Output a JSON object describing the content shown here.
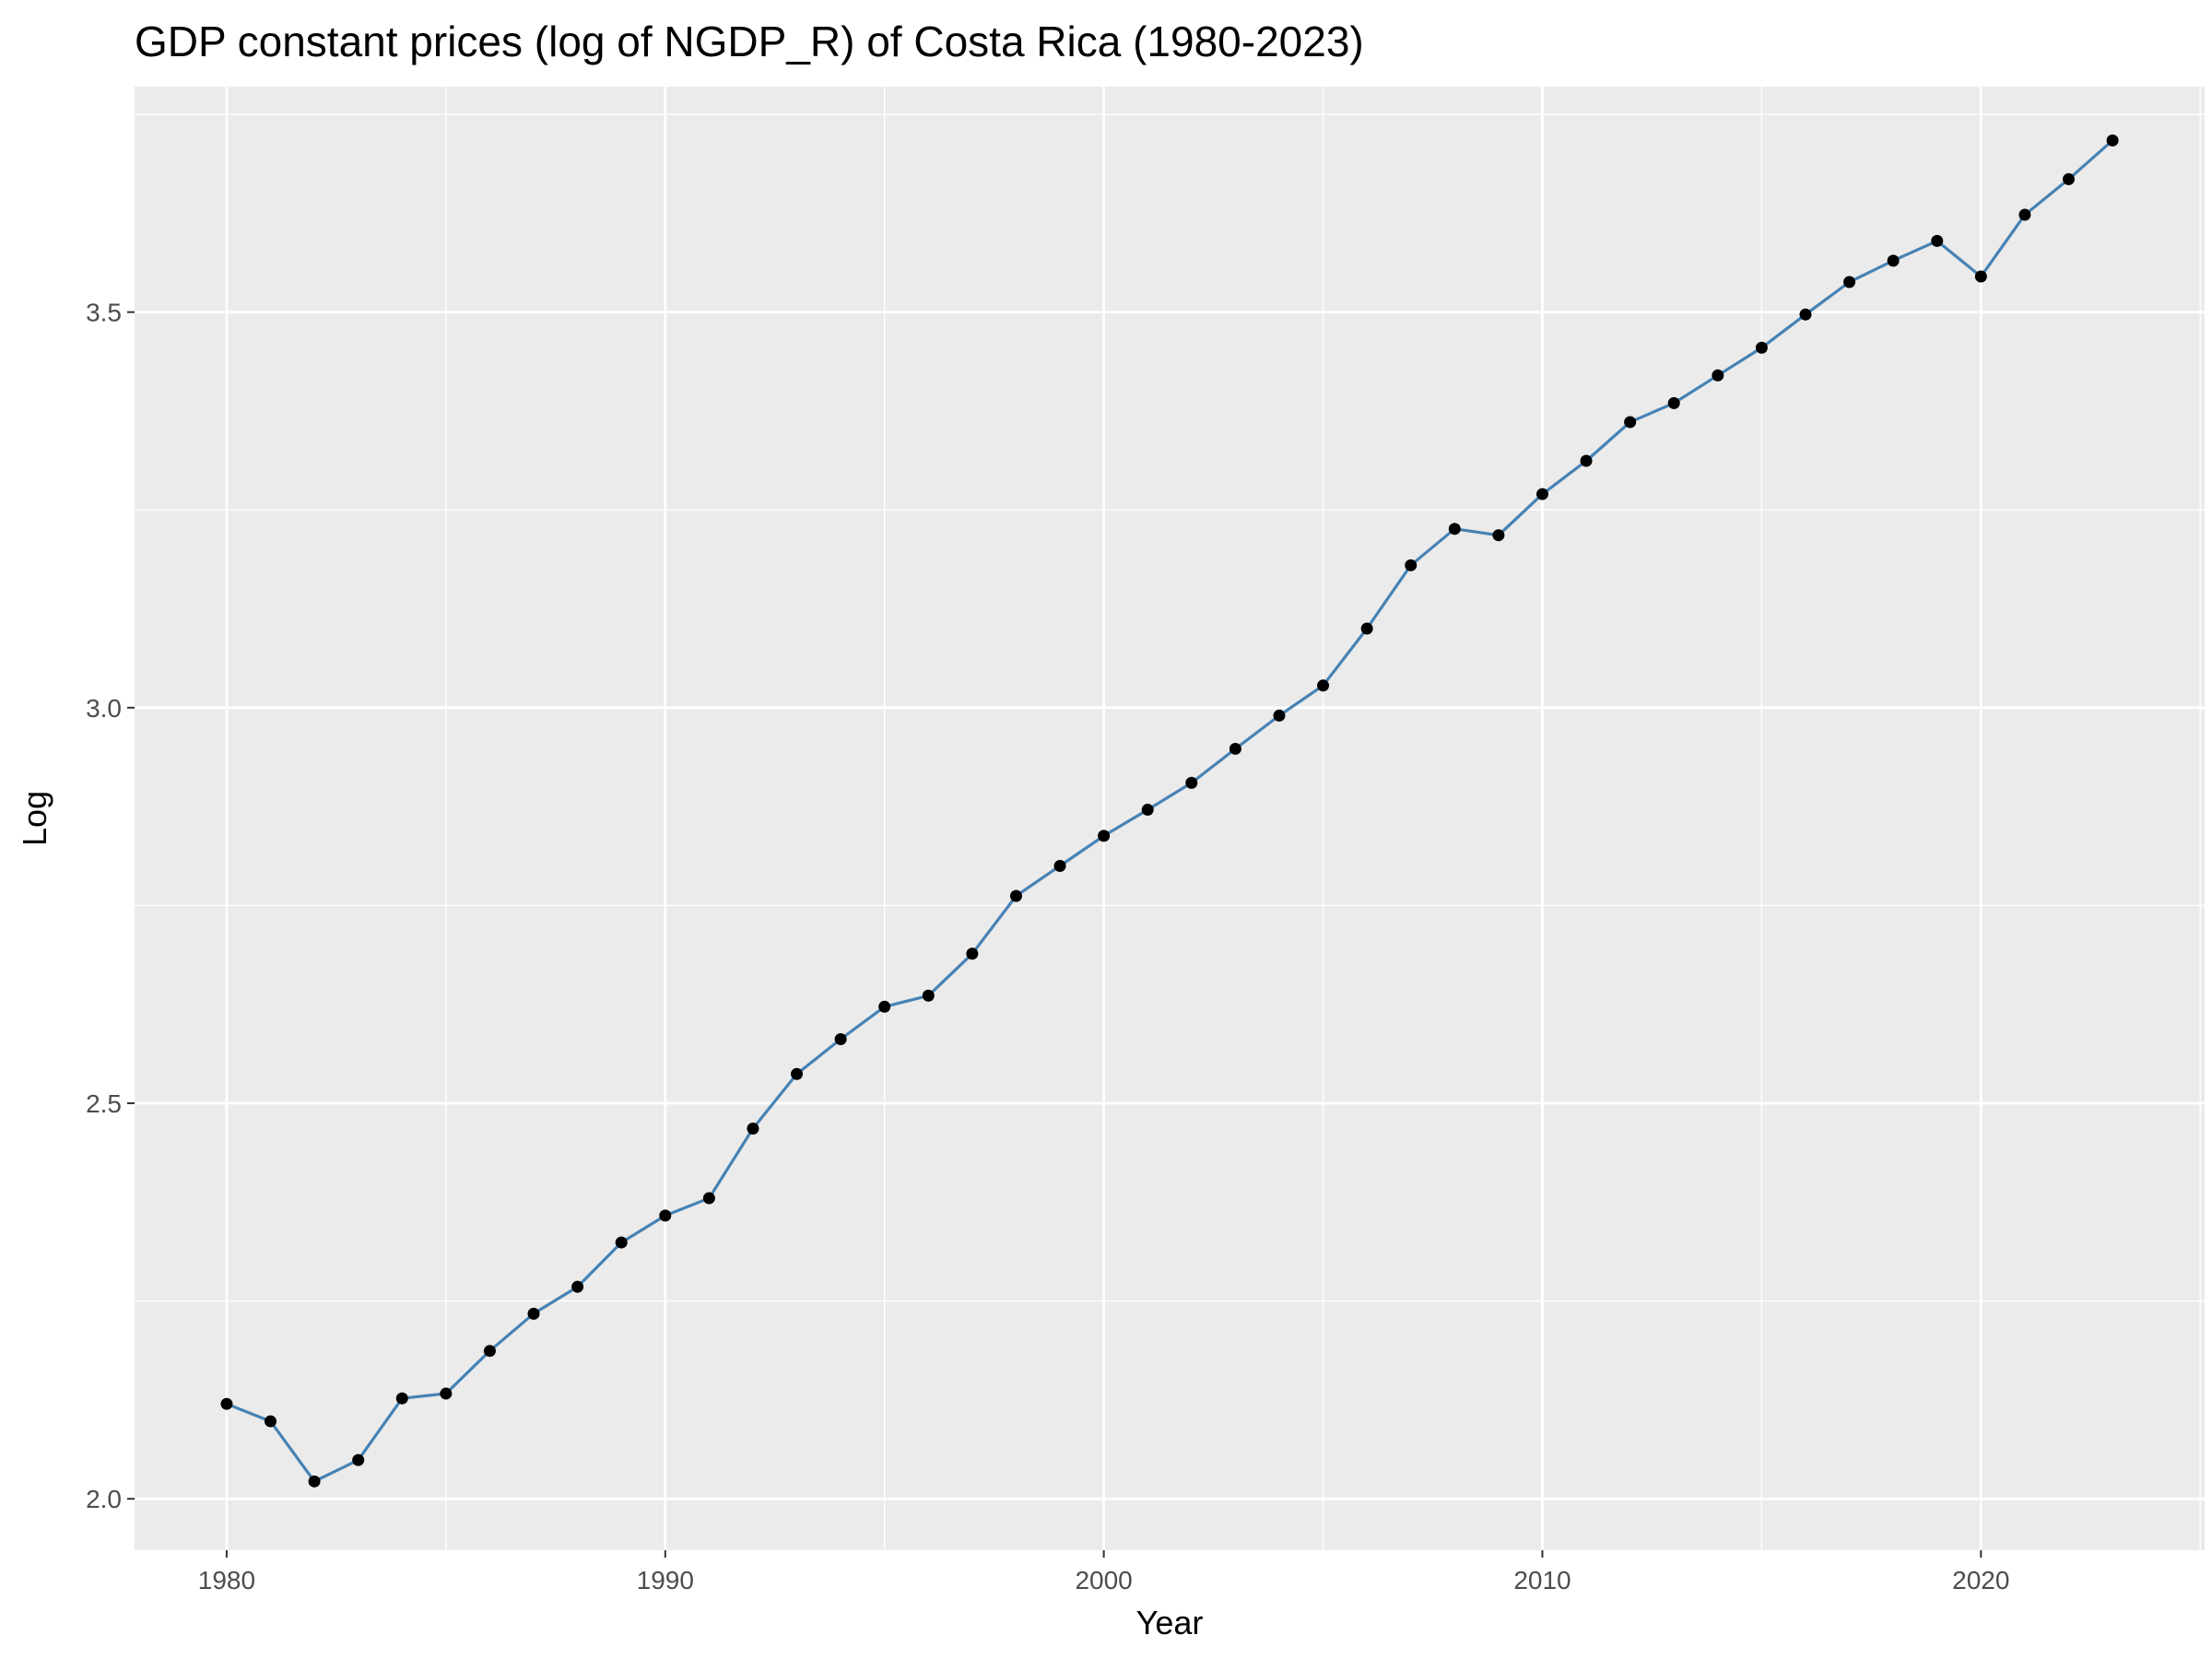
{
  "chart_data": {
    "type": "line",
    "title": "GDP constant prices (log of NGDP_R) of Costa Rica (1980-2023)",
    "xlabel": "Year",
    "ylabel": "Log",
    "xlim": [
      1977.9,
      2025.1
    ],
    "ylim": [
      1.935,
      3.785
    ],
    "x_ticks": [
      1980,
      1990,
      2000,
      2010,
      2020
    ],
    "y_ticks": [
      2.0,
      2.5,
      3.0,
      3.5
    ],
    "x_tick_labels": [
      "1980",
      "1990",
      "2000",
      "2010",
      "2020"
    ],
    "y_tick_labels": [
      "2.0",
      "2.5",
      "3.0",
      "3.5"
    ],
    "grid": true,
    "legend": "none",
    "series": [
      {
        "line_color": "#4682b4",
        "point_color": "#000000",
        "x": [
          1980,
          1981,
          1982,
          1983,
          1984,
          1985,
          1986,
          1987,
          1988,
          1989,
          1990,
          1991,
          1992,
          1993,
          1994,
          1995,
          1996,
          1997,
          1998,
          1999,
          2000,
          2001,
          2002,
          2003,
          2004,
          2005,
          2006,
          2007,
          2008,
          2009,
          2010,
          2011,
          2012,
          2013,
          2014,
          2015,
          2016,
          2017,
          2018,
          2019,
          2020,
          2021,
          2022,
          2023
        ],
        "y": [
          2.12,
          2.098,
          2.022,
          2.049,
          2.127,
          2.133,
          2.187,
          2.234,
          2.268,
          2.324,
          2.358,
          2.38,
          2.468,
          2.537,
          2.581,
          2.622,
          2.636,
          2.689,
          2.762,
          2.8,
          2.838,
          2.871,
          2.905,
          2.948,
          2.99,
          3.028,
          3.1,
          3.18,
          3.226,
          3.218,
          3.27,
          3.312,
          3.361,
          3.385,
          3.42,
          3.455,
          3.497,
          3.538,
          3.565,
          3.59,
          3.545,
          3.623,
          3.668,
          3.717
        ]
      }
    ],
    "colors": {
      "panel_background": "#ebebeb",
      "grid": "#ffffff",
      "tick_mark": "#333333"
    }
  }
}
